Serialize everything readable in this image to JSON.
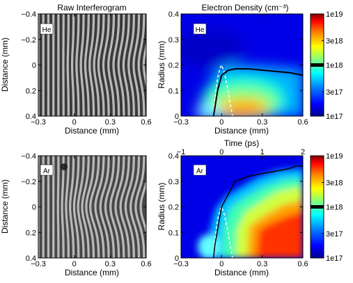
{
  "colors": {
    "jet": [
      "#00008f",
      "#0000ff",
      "#0080ff",
      "#00ffff",
      "#80ff80",
      "#ffff00",
      "#ff8000",
      "#ff0000",
      "#800000"
    ],
    "threshold_line": "#000000",
    "dashed_contour": "#ffffff",
    "fringe_dark": "#2a2a2a",
    "fringe_light": "#c8c8c8"
  },
  "chart_data": [
    {
      "type": "heatmap",
      "panel": "interferogram-he",
      "title": "Raw Interferogram",
      "gas_label": "He",
      "xlabel": "Distance (mm)",
      "ylabel": "Distance (mm)",
      "xlim": [
        -0.3,
        0.6
      ],
      "ylim": [
        -0.4,
        0.4
      ],
      "y_inverted": true,
      "xticks": [
        "−0.3",
        "0",
        "0.3",
        "0.6"
      ],
      "yticks": [
        "−0.4",
        "−0.2",
        "0",
        "0.2",
        "0.4"
      ],
      "fringe_spacing_mm": 0.042,
      "max_fringe_shift_mm": 0.045,
      "shift_center_x_mm": 0.25
    },
    {
      "type": "heatmap",
      "panel": "density-he",
      "title": "Electron Density (cm⁻³)",
      "gas_label": "He",
      "xlabel": "Distance (mm)",
      "ylabel": "Radius (mm)",
      "xlim": [
        -0.3,
        0.6
      ],
      "ylim": [
        0,
        0.4
      ],
      "xticks": [
        "−0.3",
        "0",
        "0.3",
        "0.6"
      ],
      "yticks": [
        "0",
        "0.1",
        "0.2",
        "0.3",
        "0.4"
      ],
      "threshold_contour": {
        "level": "1e18",
        "x": [
          -0.06,
          -0.03,
          0.0,
          0.05,
          0.1,
          0.2,
          0.3,
          0.4,
          0.5,
          0.6
        ],
        "y": [
          0.0,
          0.1,
          0.16,
          0.18,
          0.185,
          0.185,
          0.18,
          0.175,
          0.17,
          0.16
        ]
      },
      "dashed_contour": {
        "x": [
          -0.06,
          -0.05,
          -0.03,
          -0.01,
          0.0,
          0.02,
          0.04,
          0.06,
          0.08
        ],
        "y": [
          0.0,
          0.07,
          0.15,
          0.19,
          0.2,
          0.17,
          0.12,
          0.06,
          0.0
        ]
      },
      "colorbar": {
        "scale": "log",
        "min": 1e+17,
        "max": 1e+19,
        "ticks": [
          "1e17",
          "3e17",
          "1e18",
          "3e18",
          "1e19"
        ],
        "marked_level": "1e18"
      }
    },
    {
      "type": "heatmap",
      "panel": "interferogram-ar",
      "gas_label": "Ar",
      "xlabel": "Distance (mm)",
      "ylabel": "Distance (mm)",
      "xlim": [
        -0.3,
        0.6
      ],
      "ylim": [
        -0.4,
        0.4
      ],
      "y_inverted": true,
      "xticks": [
        "−0.3",
        "0",
        "0.3",
        "0.6"
      ],
      "yticks": [
        "−0.4",
        "−0.2",
        "0",
        "0.2",
        "0.4"
      ],
      "fringe_spacing_mm": 0.042,
      "max_fringe_shift_mm": 0.07,
      "shift_center_x_mm": 0.2
    },
    {
      "type": "heatmap",
      "panel": "density-ar",
      "gas_label": "Ar",
      "xlabel": "Distance (mm)",
      "ylabel": "Radius (mm)",
      "x2label": "Time (ps)",
      "xlim": [
        -0.3,
        0.6
      ],
      "ylim": [
        0,
        0.4
      ],
      "x2lim": [
        -1,
        2
      ],
      "xticks": [
        "−0.3",
        "0",
        "0.3",
        "0.6"
      ],
      "yticks": [
        "0",
        "0.1",
        "0.2",
        "0.3",
        "0.4"
      ],
      "x2ticks": [
        "−1",
        "0",
        "1",
        "2"
      ],
      "threshold_contour": {
        "level": "1e18",
        "x": [
          -0.06,
          -0.05,
          -0.02,
          0.0,
          0.05,
          0.1,
          0.2,
          0.3,
          0.4,
          0.5,
          0.55,
          0.6
        ],
        "y": [
          0.0,
          0.05,
          0.14,
          0.2,
          0.25,
          0.3,
          0.32,
          0.33,
          0.34,
          0.35,
          0.36,
          0.36
        ]
      },
      "dashed_contour": {
        "x": [
          -0.06,
          -0.05,
          -0.03,
          -0.01,
          0.0,
          0.02,
          0.04,
          0.06,
          0.08
        ],
        "y": [
          0.0,
          0.07,
          0.15,
          0.19,
          0.2,
          0.17,
          0.12,
          0.06,
          0.0
        ]
      },
      "colorbar": {
        "scale": "log",
        "min": 1e+17,
        "max": 1e+19,
        "ticks": [
          "1e17",
          "3e17",
          "1e18",
          "3e18",
          "1e19"
        ],
        "marked_level": "1e18"
      }
    }
  ]
}
